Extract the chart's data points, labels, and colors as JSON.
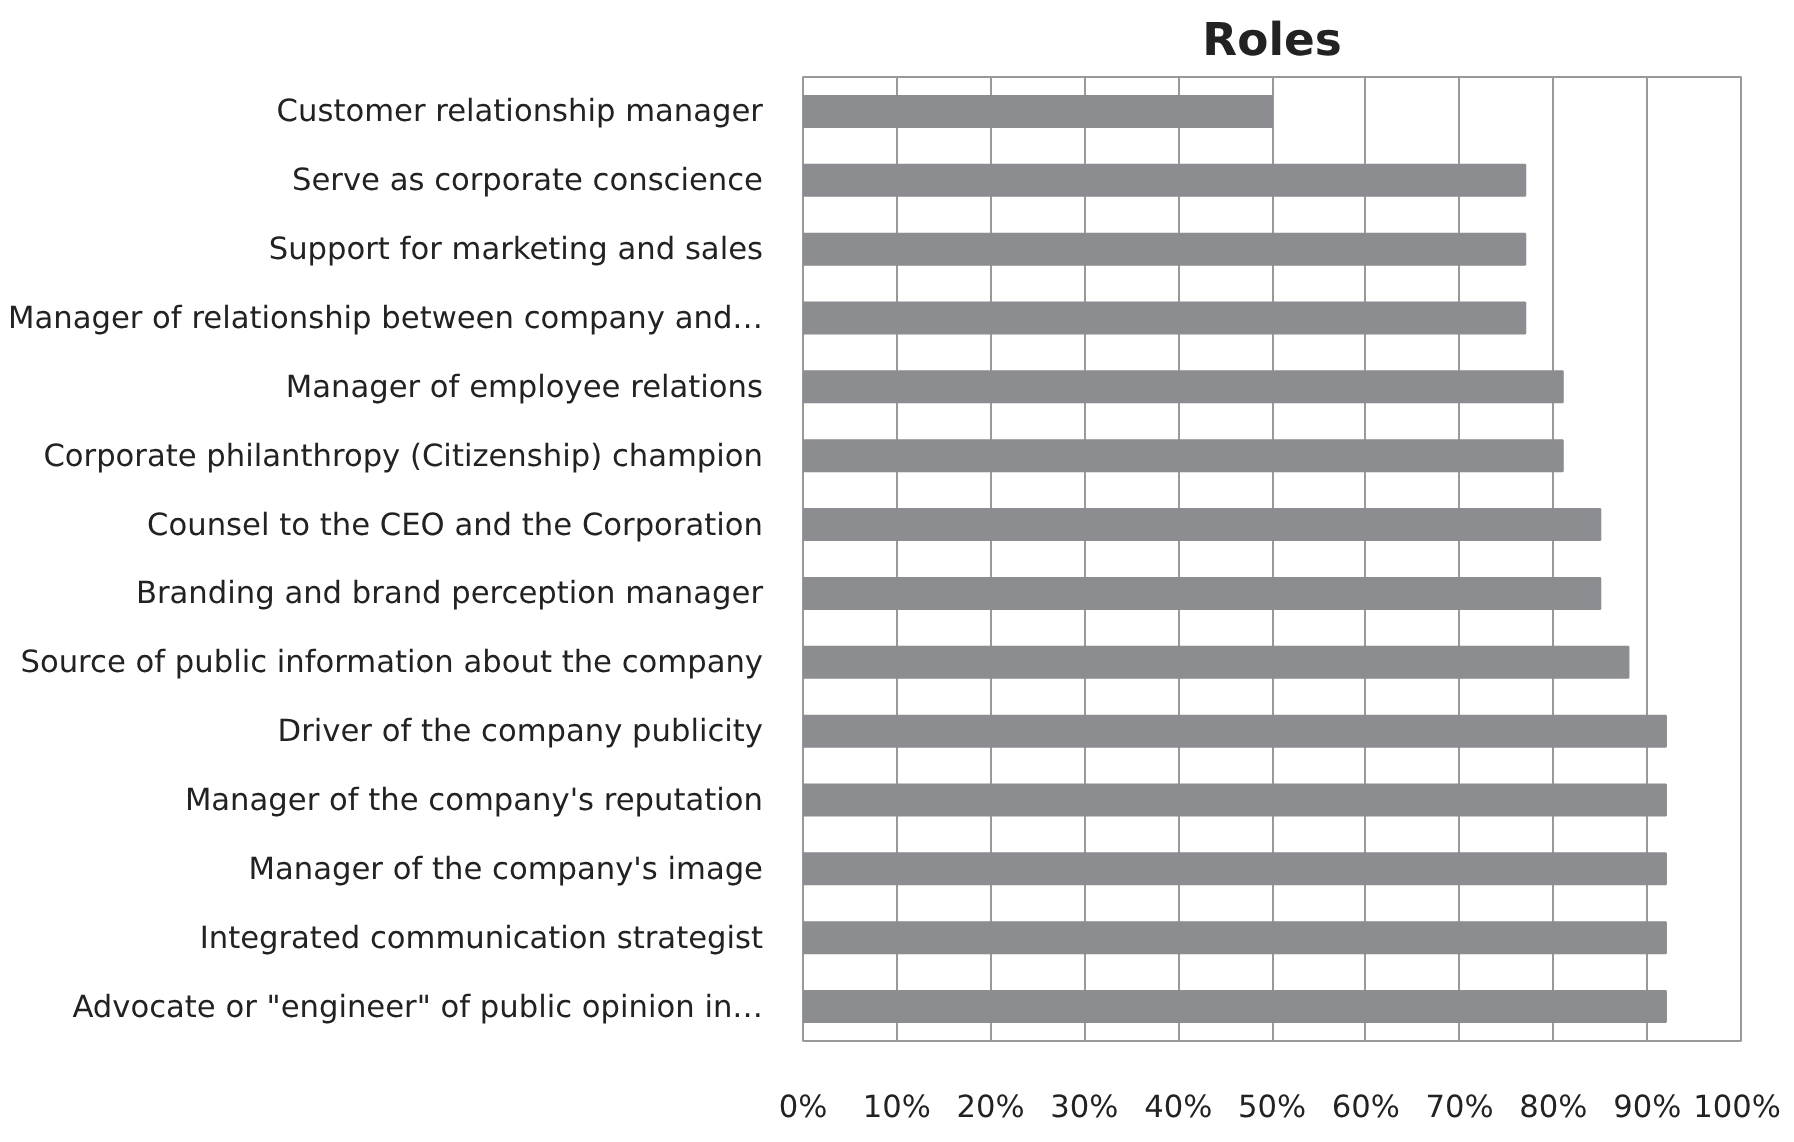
{
  "chart_data": {
    "type": "bar",
    "orientation": "horizontal",
    "title": "Roles",
    "categories": [
      "Customer relationship manager",
      "Serve as corporate conscience",
      "Support for marketing and sales",
      "Manager of relationship between company and…",
      "Manager of employee relations",
      "Corporate philanthropy (Citizenship) champion",
      "Counsel to the CEO and the Corporation",
      "Branding and brand perception manager",
      "Source of public information about the company",
      "Driver of the company publicity",
      "Manager of the company's reputation",
      "Manager of the company's image",
      "Integrated communication strategist",
      "Advocate or \"engineer\" of public opinion in…"
    ],
    "values": [
      50,
      77,
      77,
      77,
      81,
      81,
      85,
      85,
      88,
      92,
      92,
      92,
      92,
      92
    ],
    "color": "#8c8d91",
    "xlim": [
      0,
      100
    ],
    "xticks": [
      {
        "value": 0,
        "label": "0%"
      },
      {
        "value": 10,
        "label": "10%"
      },
      {
        "value": 20,
        "label": "20%"
      },
      {
        "value": 30,
        "label": "30%"
      },
      {
        "value": 40,
        "label": "40%"
      },
      {
        "value": 50,
        "label": "50%"
      },
      {
        "value": 60,
        "label": "60%"
      },
      {
        "value": 70,
        "label": "70%"
      },
      {
        "value": 80,
        "label": "80%"
      },
      {
        "value": 90,
        "label": "90%"
      },
      {
        "value": 100,
        "label": "100%"
      }
    ],
    "grid": "x"
  }
}
